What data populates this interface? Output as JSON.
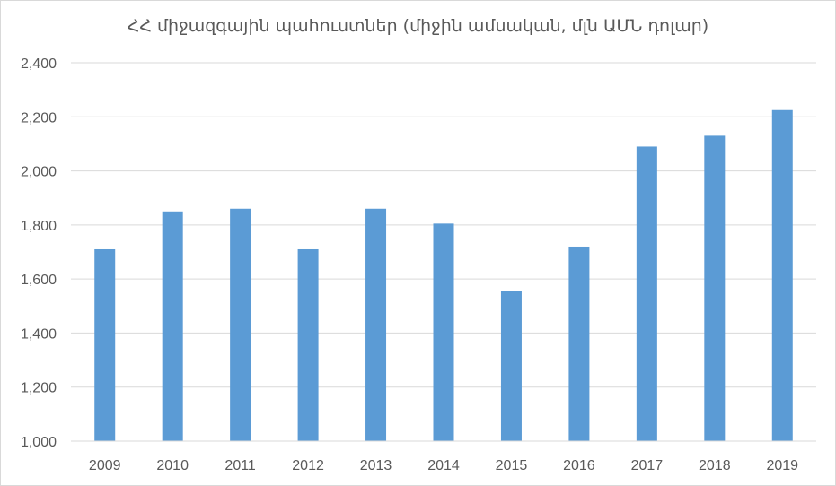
{
  "chart_data": {
    "type": "bar",
    "title": "ՀՀ միջազգային պահուստներ (միջին ամսական, մլն ԱՄՆ դոլար)",
    "xlabel": "",
    "ylabel": "",
    "categories": [
      "2009",
      "2010",
      "2011",
      "2012",
      "2013",
      "2014",
      "2015",
      "2016",
      "2017",
      "2018",
      "2019"
    ],
    "values": [
      1710,
      1850,
      1860,
      1710,
      1860,
      1805,
      1555,
      1720,
      2090,
      2130,
      2225
    ],
    "ylim": [
      1000,
      2400
    ],
    "yticks": [
      1000,
      1200,
      1400,
      1600,
      1800,
      2000,
      2200,
      2400
    ],
    "ytick_labels": [
      "1,000",
      "1,200",
      "1,400",
      "1,600",
      "1,800",
      "2,000",
      "2,200",
      "2,400"
    ],
    "bar_color": "#5B9BD5",
    "grid": true,
    "legend": "none"
  }
}
